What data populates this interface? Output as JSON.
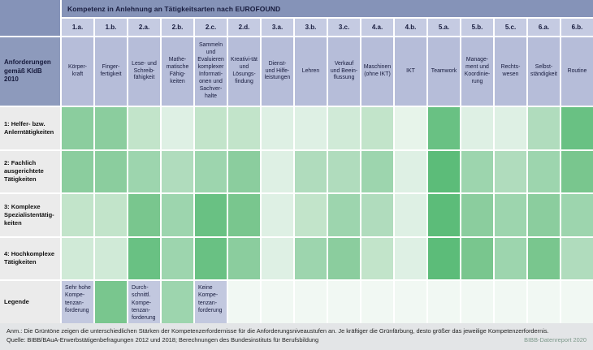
{
  "header": {
    "title": "Kompetenz in Anlehnung an Tätigkeitsarten nach EUROFOUND",
    "row_axis_label": "Anforderungen gemäß KldB 2010",
    "column_codes": [
      "1.a.",
      "1.b.",
      "2.a.",
      "2.b.",
      "2.c.",
      "2.d.",
      "3.a.",
      "3.b.",
      "3.c.",
      "4.a.",
      "4.b.",
      "5.a.",
      "5.b.",
      "5.c.",
      "6.a.",
      "6.b."
    ],
    "column_labels": [
      "Körper-kraft",
      "Finger-fertigkeit",
      "Lese- und Schreib-fähigkeit",
      "Mathe-matische Fähig-keiten",
      "Sammeln und Evaluieren komplexer Informati-onen und Sachver-halte",
      "Kreativi-tät und Lösungs-findung",
      "Dienst- und Hilfe-leistungen",
      "Lehren",
      "Verkauf und Beein-flussung",
      "Maschinen (ohne IKT)",
      "IKT",
      "Teamwork",
      "Manage-ment und Koordinie-rung",
      "Rechts-wesen",
      "Selbst-ständigkeit",
      "Routine"
    ]
  },
  "rows": [
    {
      "label": "1: Helfer- bzw. Anlerntätigkeiten",
      "levels": [
        7,
        7,
        4,
        2,
        4,
        4,
        2,
        2,
        3,
        4,
        1,
        9,
        2,
        2,
        5,
        9
      ]
    },
    {
      "label": "2: Fachlich ausgerichtete Tätigkeiten",
      "levels": [
        7,
        7,
        6,
        5,
        6,
        7,
        2,
        5,
        5,
        6,
        2,
        10,
        6,
        5,
        6,
        8
      ]
    },
    {
      "label": "3: Komplexe Spezialistentätig-keiten",
      "levels": [
        4,
        4,
        8,
        6,
        9,
        8,
        2,
        4,
        6,
        5,
        2,
        10,
        7,
        6,
        7,
        6
      ]
    },
    {
      "label": "4: Hochkomplexe Tätigkeiten",
      "levels": [
        3,
        3,
        9,
        6,
        9,
        7,
        2,
        6,
        7,
        4,
        2,
        10,
        8,
        6,
        8,
        5
      ]
    }
  ],
  "legend": {
    "row_label": "Legende",
    "entries": [
      {
        "label": "Sehr hohe Kompe-tenzan-forderung",
        "level": 8
      },
      {
        "label": "Durch-schnittl. Kompe-tenzan-forderung",
        "level": 6
      },
      {
        "label": "Keine Kompe-tenzan-forderung",
        "level": 0
      }
    ]
  },
  "footer": {
    "note": "Anm.: Die Grüntöne zeigen die unterschiedlichen Stärken der Kompetenzerfordernisse für die Anforderungsniveaustufen an. Je kräftiger die Grünfärbung, desto größer das jeweilige Kompetenzerfordernis.",
    "source": "Quelle: BIBB/BAuA-Erwerbstätigenbefragungen 2012 und 2018; Berechnungen des Bundesinstituts für Berufsbildung",
    "credit": "BIBB-Datenreport 2020"
  },
  "colors": {
    "green_palette": [
      "#f1f8f3",
      "#e7f4ea",
      "#def0e4",
      "#d0ead7",
      "#c2e4ca",
      "#b0dcbd",
      "#9dd5ae",
      "#8bcd9e",
      "#79c68e",
      "#69c183",
      "#5cbc79"
    ],
    "slate_header": "#8593b8",
    "slate_axis_cell": "#8d9abc",
    "lavender_code_row": "#c5cbe2",
    "lavender_label_row": "#b6bdd9",
    "lavender_legend_cell": "#c2c8df",
    "row_header_grey": "#ebebeb",
    "footer_background": "#e3e5e7",
    "credit_text": "#7f9a8c",
    "header_text": "#171b3d"
  },
  "chart_data": {
    "type": "heatmap",
    "title": "Kompetenz in Anlehnung an Tätigkeitsarten nach EUROFOUND",
    "x_codes": [
      "1.a.",
      "1.b.",
      "2.a.",
      "2.b.",
      "2.c.",
      "2.d.",
      "3.a.",
      "3.b.",
      "3.c.",
      "4.a.",
      "4.b.",
      "5.a.",
      "5.b.",
      "5.c.",
      "6.a.",
      "6.b."
    ],
    "x_labels": [
      "Körperkraft",
      "Fingerfertigkeit",
      "Lese- und Schreibfähigkeit",
      "Mathematische Fähigkeiten",
      "Sammeln und Evaluieren komplexer Informationen und Sachverhalte",
      "Kreativität und Lösungsfindung",
      "Dienst- und Hilfeleistungen",
      "Lehren",
      "Verkauf und Beeinflussung",
      "Maschinen (ohne IKT)",
      "IKT",
      "Teamwork",
      "Management und Koordinierung",
      "Rechtswesen",
      "Selbstständigkeit",
      "Routine"
    ],
    "y_axis_label": "Anforderungen gemäß KldB 2010",
    "y_categories": [
      "1: Helfer- bzw. Anlerntätigkeiten",
      "2: Fachlich ausgerichtete Tätigkeiten",
      "3: Komplexe Spezialistentätigkeiten",
      "4: Hochkomplexe Tätigkeiten"
    ],
    "value_scale": "0 = keine Kompetenzanforderung, 10 = sehr hohe Kompetenzanforderung (aus Grünintensität abgelesen)",
    "values": [
      [
        7,
        7,
        4,
        2,
        4,
        4,
        2,
        2,
        3,
        4,
        1,
        9,
        2,
        2,
        5,
        9
      ],
      [
        7,
        7,
        6,
        5,
        6,
        7,
        2,
        5,
        5,
        6,
        2,
        10,
        6,
        5,
        6,
        8
      ],
      [
        4,
        4,
        8,
        6,
        9,
        8,
        2,
        4,
        6,
        5,
        2,
        10,
        7,
        6,
        7,
        6
      ],
      [
        3,
        3,
        9,
        6,
        9,
        7,
        2,
        6,
        7,
        4,
        2,
        10,
        8,
        6,
        8,
        5
      ]
    ],
    "legend": [
      {
        "label": "Sehr hohe Kompetenzanforderung",
        "level": 8
      },
      {
        "label": "Durchschnittl. Kompetenzanforderung",
        "level": 6
      },
      {
        "label": "Keine Kompetenzanforderung",
        "level": 0
      }
    ],
    "grid": true,
    "legend_position": "bottom-row"
  }
}
